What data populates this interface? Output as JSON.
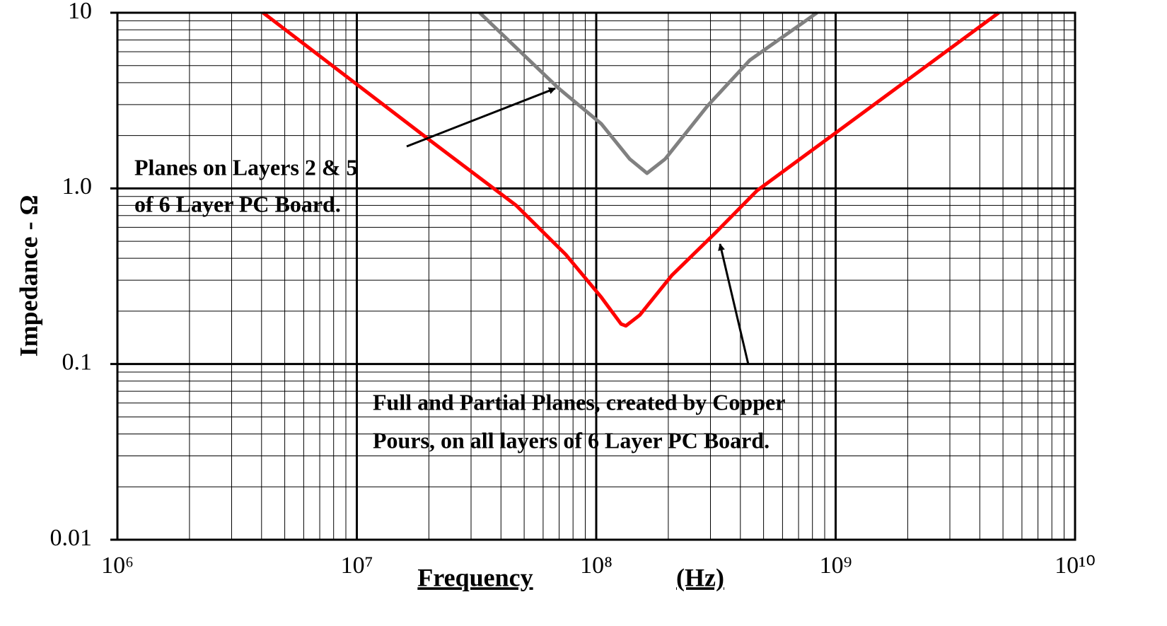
{
  "chart_data": {
    "type": "line",
    "ylabel": "Impedance - Ω",
    "xlabel_parts": [
      "Frequency",
      "(Hz)"
    ],
    "xscale": "log",
    "yscale": "log",
    "grid": true,
    "minor_grid": true,
    "xlim": [
      1000000,
      10000000000
    ],
    "ylim": [
      0.01,
      10
    ],
    "xticks": [
      {
        "value": 1000000,
        "label": "10⁶"
      },
      {
        "value": 10000000,
        "label": "10⁷"
      },
      {
        "value": 100000000,
        "label": "10⁸"
      },
      {
        "value": 1000000000,
        "label": "10⁹"
      },
      {
        "value": 10000000000,
        "label": "10¹⁰"
      }
    ],
    "yticks": [
      0.01,
      0.1,
      {
        "value": 1,
        "label": "1.0"
      },
      10
    ],
    "series": [
      {
        "color": "#ff0000",
        "x": [
          4060000,
          20500000,
          46300000,
          74600000,
          105000000,
          127000000,
          133000000,
          152000000,
          207000000,
          311000000,
          469000000,
          1000000000,
          4800000000
        ],
        "values": [
          10,
          1.85,
          0.8,
          0.42,
          0.24,
          0.169,
          0.165,
          0.19,
          0.32,
          0.55,
          0.97,
          2.07,
          10
        ]
      },
      {
        "color": "#808080",
        "x": [
          32600000,
          69700000,
          105000000,
          138000000,
          163000000,
          194000000,
          291000000,
          438000000,
          836000000
        ],
        "values": [
          10,
          3.71,
          2.33,
          1.47,
          1.22,
          1.47,
          2.94,
          5.37,
          10
        ]
      }
    ],
    "annotations": [
      {
        "lines": [
          "Planes on Layers 2 & 5",
          "of 6 Layer PC Board."
        ]
      },
      {
        "lines": [
          "Full and Partial Planes, created by Copper",
          "Pours, on all layers of 6 Layer PC Board."
        ]
      }
    ]
  }
}
